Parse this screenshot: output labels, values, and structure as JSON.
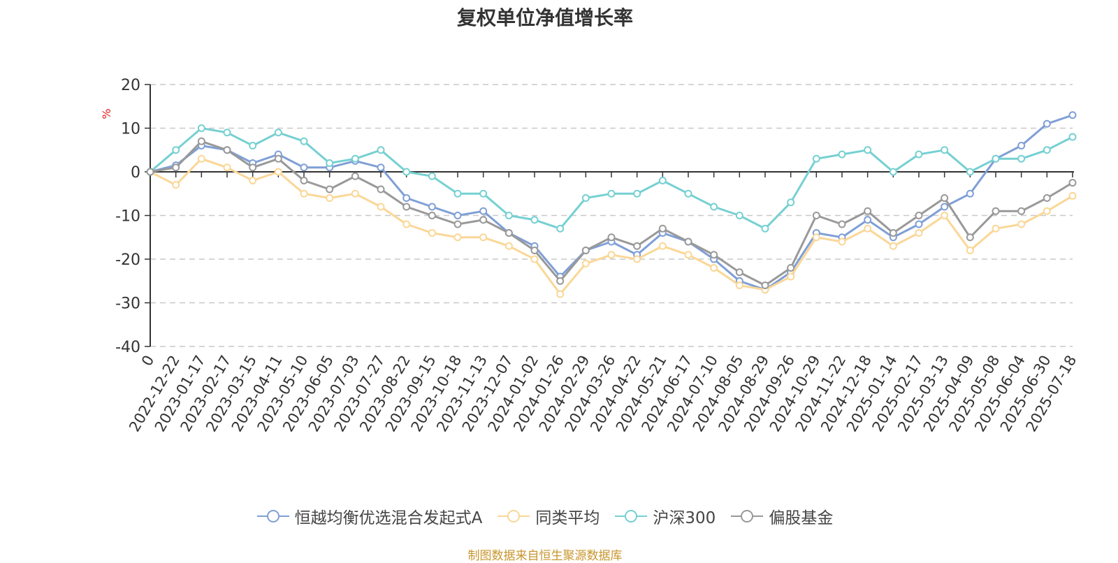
{
  "chart_data": {
    "type": "line",
    "title": "复权单位净值增长率",
    "ylabel": "%",
    "ylim": [
      -40,
      20
    ],
    "yticks": [
      20,
      10,
      0,
      -10,
      -20,
      -30,
      -40
    ],
    "grid": true,
    "legend_position": "bottom",
    "x_tick_labels": [
      "0",
      "2022-12-22",
      "2023-01-17",
      "2023-02-17",
      "2023-03-15",
      "2023-04-11",
      "2023-05-10",
      "2023-06-05",
      "2023-07-03",
      "2023-07-27",
      "2023-08-22",
      "2023-09-15",
      "2023-10-18",
      "2023-11-13",
      "2023-12-07",
      "2024-01-02",
      "2024-01-26",
      "2024-02-29",
      "2024-03-26",
      "2024-04-22",
      "2024-05-21",
      "2024-06-17",
      "2024-07-10",
      "2024-08-05",
      "2024-08-29",
      "2024-09-26",
      "2024-10-29",
      "2024-11-22",
      "2024-12-18",
      "2025-01-14",
      "2025-02-17",
      "2025-03-13",
      "2025-04-09",
      "2025-05-08",
      "2025-06-04",
      "2025-06-30",
      "2025-07-18"
    ],
    "x": [
      "0",
      "2022-12-22",
      "2023-01-17",
      "2023-02-17",
      "2023-03-15",
      "2023-04-11",
      "2023-05-10",
      "2023-06-05",
      "2023-07-03",
      "2023-07-27",
      "2023-08-22",
      "2023-09-15",
      "2023-10-18",
      "2023-11-13",
      "2023-12-07",
      "2024-01-02",
      "2024-01-26",
      "2024-02-29",
      "2024-03-26",
      "2024-04-22",
      "2024-05-21",
      "2024-06-17",
      "2024-07-10",
      "2024-08-05",
      "2024-08-29",
      "2024-09-26",
      "2024-10-29",
      "2024-11-22",
      "2024-12-18",
      "2025-01-14",
      "2025-02-17",
      "2025-03-13",
      "2025-04-09",
      "2025-05-08",
      "2025-06-04",
      "2025-06-30",
      "2025-07-18"
    ],
    "series": [
      {
        "name": "恒越均衡优选混合发起式A",
        "color": "#7f9fd6",
        "values": [
          0,
          1.5,
          6,
          5,
          2,
          4,
          1,
          1,
          2.5,
          1,
          -6,
          -8,
          -10,
          -9,
          -14,
          -17,
          -24,
          -18,
          -16,
          -19,
          -14,
          -16,
          -20,
          -25,
          -27,
          -23,
          -14,
          -15,
          -11,
          -15,
          -12,
          -8,
          -5,
          3,
          6,
          11,
          13
        ]
      },
      {
        "name": "同类平均",
        "color": "#fad797",
        "values": [
          0,
          -3,
          3,
          1,
          -2,
          0,
          -5,
          -6,
          -5,
          -8,
          -12,
          -14,
          -15,
          -15,
          -17,
          -20,
          -28,
          -21,
          -19,
          -20,
          -17,
          -19,
          -22,
          -26,
          -27,
          -24,
          -15,
          -16,
          -13,
          -17,
          -14,
          -10,
          -18,
          -13,
          -12,
          -9,
          -5.5
        ]
      },
      {
        "name": "沪深300",
        "color": "#76d0d2",
        "values": [
          0,
          5,
          10,
          9,
          6,
          9,
          7,
          2,
          3,
          5,
          0,
          -1,
          -5,
          -5,
          -10,
          -11,
          -13,
          -6,
          -5,
          -5,
          -2,
          -5,
          -8,
          -10,
          -13,
          -7,
          3,
          4,
          5,
          0,
          4,
          5,
          0,
          3,
          3,
          5,
          8
        ]
      },
      {
        "name": "偏股基金",
        "color": "#999999",
        "values": [
          0,
          1,
          7,
          5,
          1,
          3,
          -2,
          -4,
          -1,
          -4,
          -8,
          -10,
          -12,
          -11,
          -14,
          -18,
          -25,
          -18,
          -15,
          -17,
          -13,
          -16,
          -19,
          -23,
          -26,
          -22,
          -10,
          -12,
          -9,
          -14,
          -10,
          -6,
          -15,
          -9,
          -9,
          -6,
          -2.5
        ]
      }
    ]
  },
  "legend": {
    "items": [
      {
        "label": "恒越均衡优选混合发起式A",
        "color": "#7f9fd6"
      },
      {
        "label": "同类平均",
        "color": "#fad797"
      },
      {
        "label": "沪深300",
        "color": "#76d0d2"
      },
      {
        "label": "偏股基金",
        "color": "#999999"
      }
    ]
  },
  "footer": {
    "source": "制图数据来自恒生聚源数据库"
  }
}
